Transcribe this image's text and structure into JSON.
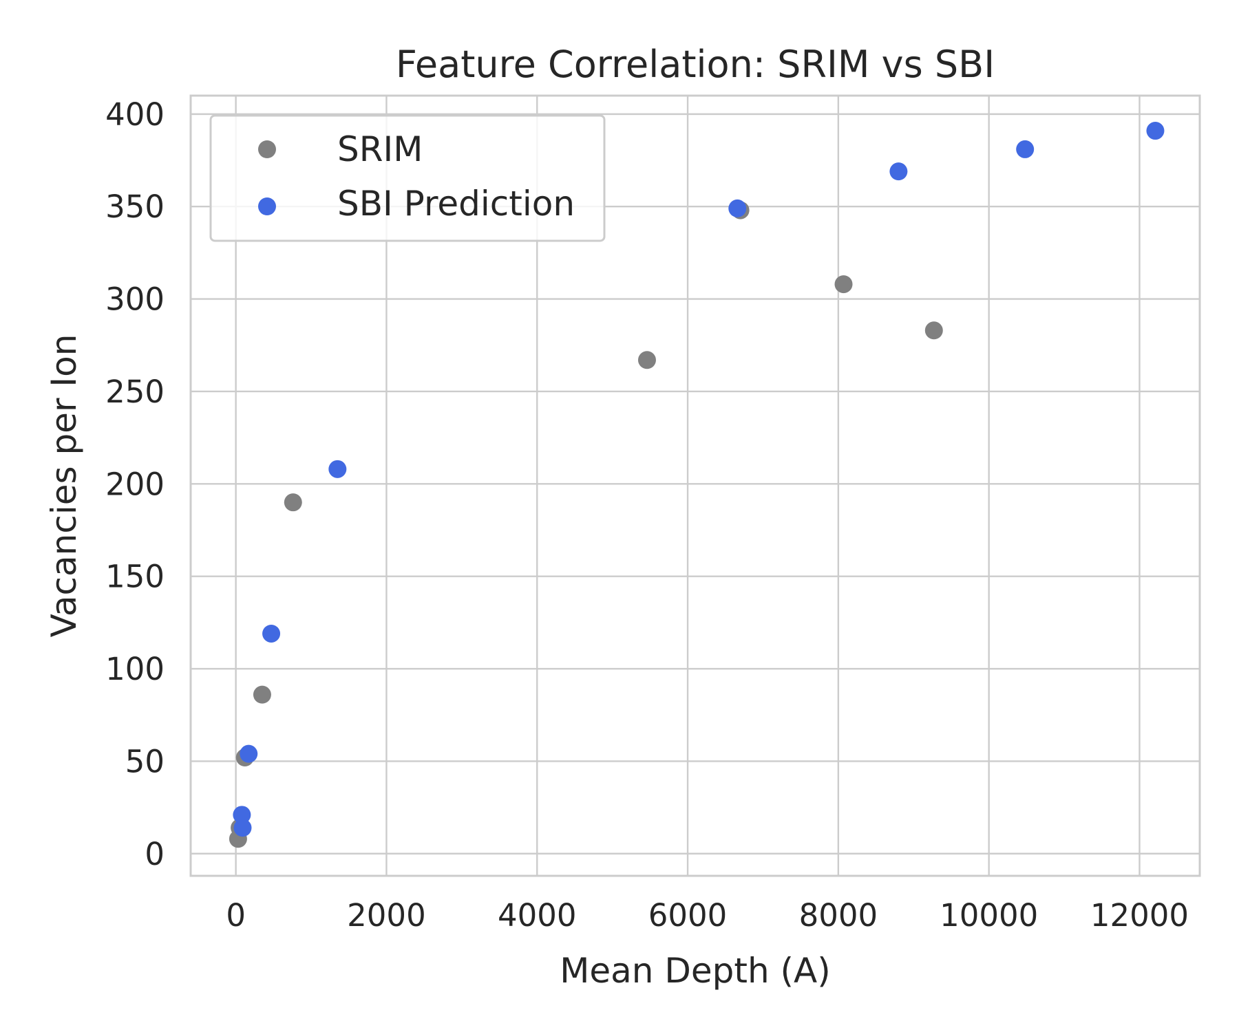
{
  "chart_data": {
    "type": "scatter",
    "title": "Feature Correlation: SRIM vs SBI",
    "xlabel": "Mean Depth (A)",
    "ylabel": "Vacancies per Ion",
    "xlim": [
      -600,
      12800
    ],
    "ylim": [
      -12,
      410
    ],
    "xticks": [
      0,
      2000,
      4000,
      6000,
      8000,
      10000,
      12000
    ],
    "yticks": [
      0,
      50,
      100,
      150,
      200,
      250,
      300,
      350,
      400
    ],
    "grid": true,
    "legend_position": "upper-left",
    "series": [
      {
        "name": "SRIM",
        "color": "#808080",
        "points": [
          {
            "x": 30,
            "y": 8
          },
          {
            "x": 50,
            "y": 14
          },
          {
            "x": 120,
            "y": 52
          },
          {
            "x": 350,
            "y": 86
          },
          {
            "x": 760,
            "y": 190
          },
          {
            "x": 5460,
            "y": 267
          },
          {
            "x": 6700,
            "y": 348
          },
          {
            "x": 8070,
            "y": 308
          },
          {
            "x": 9270,
            "y": 283
          }
        ]
      },
      {
        "name": "SBI Prediction",
        "color": "#4169e1",
        "points": [
          {
            "x": 90,
            "y": 14
          },
          {
            "x": 80,
            "y": 21
          },
          {
            "x": 170,
            "y": 54
          },
          {
            "x": 470,
            "y": 119
          },
          {
            "x": 1350,
            "y": 208
          },
          {
            "x": 6660,
            "y": 349
          },
          {
            "x": 8800,
            "y": 369
          },
          {
            "x": 10480,
            "y": 381
          },
          {
            "x": 12210,
            "y": 391
          }
        ]
      }
    ]
  }
}
